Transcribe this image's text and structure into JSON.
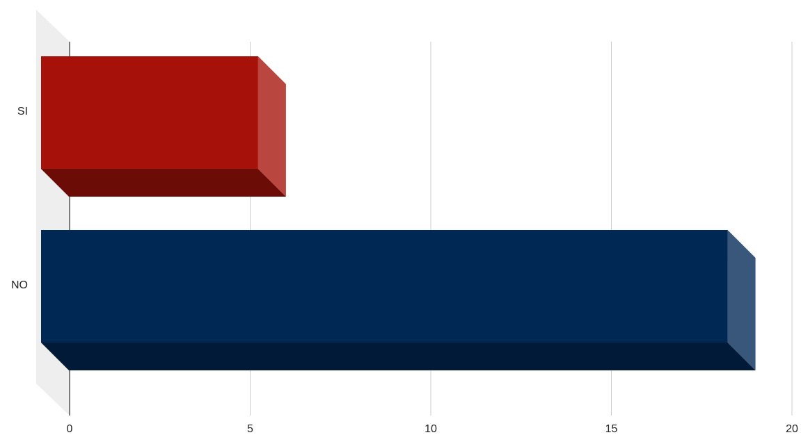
{
  "chart_data": {
    "type": "bar",
    "orientation": "horizontal",
    "style": "3d",
    "categories": [
      "SI",
      "NO"
    ],
    "values": [
      6,
      19
    ],
    "colors": [
      "#a6120a",
      "#002855"
    ],
    "xlim": [
      0,
      20
    ],
    "xticks": [
      0,
      5,
      10,
      15,
      20
    ],
    "xtick_labels": [
      "0",
      "5",
      "10",
      "15",
      "20"
    ],
    "grid": true,
    "legend": "none",
    "title": "",
    "xlabel": "",
    "ylabel": ""
  }
}
